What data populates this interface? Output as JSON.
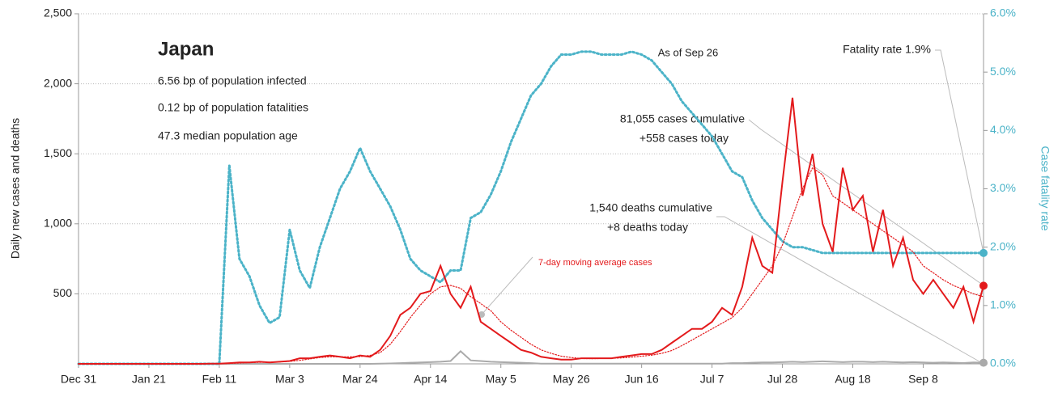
{
  "chart_data": {
    "type": "line",
    "title": "Japan",
    "annotations": [
      "6.56 bp of population infected",
      "0.12 bp of population fatalities",
      "47.3 median population age",
      "As of Sep 26",
      "Fatality rate 1.9%",
      "81,055 cases cumulative",
      "+558 cases today",
      "1,540 deaths cumulative",
      "+8 deaths today"
    ],
    "y_label": "Daily new cases and deaths",
    "y2_label": "Case fatality rate",
    "categories": [
      "Dec 31",
      null,
      null,
      null,
      null,
      null,
      null,
      "Jan 21",
      null,
      null,
      null,
      null,
      null,
      null,
      "Feb 11",
      null,
      null,
      null,
      null,
      null,
      null,
      "Mar 3",
      null,
      null,
      null,
      null,
      null,
      null,
      "Mar 24",
      null,
      null,
      null,
      null,
      null,
      null,
      "Apr 14",
      null,
      null,
      null,
      null,
      null,
      null,
      "May 5",
      null,
      null,
      null,
      null,
      null,
      null,
      "May 26",
      null,
      null,
      null,
      null,
      null,
      null,
      "Jun 16",
      null,
      null,
      null,
      null,
      null,
      null,
      "Jul 7",
      null,
      null,
      null,
      null,
      null,
      null,
      "Jul 28",
      null,
      null,
      null,
      null,
      null,
      null,
      "Aug 18",
      null,
      null,
      null,
      null,
      null,
      null,
      "Sep 8",
      null,
      null,
      null,
      null,
      null,
      null
    ],
    "series": [
      {
        "color": "#e31a1c",
        "style": "solid",
        "values": [
          0,
          0,
          0,
          0,
          0,
          0,
          0,
          0,
          0,
          0,
          0,
          0,
          0,
          1,
          1,
          5,
          10,
          10,
          15,
          10,
          15,
          20,
          40,
          40,
          50,
          60,
          50,
          40,
          60,
          50,
          100,
          200,
          350,
          400,
          500,
          520,
          700,
          500,
          400,
          550,
          300,
          250,
          200,
          150,
          100,
          80,
          50,
          40,
          30,
          30,
          40,
          40,
          40,
          40,
          50,
          60,
          70,
          70,
          100,
          150,
          200,
          250,
          250,
          300,
          400,
          350,
          550,
          900,
          700,
          650,
          1300,
          1900,
          1200,
          1500,
          1000,
          800,
          1400,
          1100,
          1200,
          800,
          1100,
          700,
          900,
          600,
          500,
          600,
          500,
          400,
          550,
          300,
          558
        ]
      },
      {
        "name": "7-day moving average cases",
        "color": "#e31a1c",
        "style": "dotted",
        "values": [
          0,
          0,
          0,
          0,
          0,
          0,
          0,
          0,
          0,
          0,
          0,
          0,
          0,
          0,
          1,
          3,
          6,
          9,
          11,
          12,
          14,
          18,
          25,
          35,
          45,
          50,
          50,
          50,
          52,
          60,
          80,
          140,
          230,
          330,
          420,
          500,
          550,
          560,
          540,
          480,
          430,
          380,
          300,
          240,
          190,
          140,
          100,
          75,
          55,
          45,
          38,
          37,
          38,
          40,
          42,
          48,
          55,
          62,
          75,
          95,
          130,
          170,
          210,
          250,
          290,
          330,
          400,
          500,
          600,
          700,
          850,
          1050,
          1250,
          1400,
          1350,
          1200,
          1150,
          1100,
          1050,
          1000,
          950,
          900,
          850,
          800,
          700,
          650,
          600,
          560,
          530,
          500,
          480
        ]
      },
      {
        "color": "#aaaaaa",
        "style": "solid",
        "values": [
          0,
          0,
          0,
          0,
          0,
          0,
          0,
          0,
          0,
          0,
          0,
          0,
          0,
          0,
          0,
          0,
          0,
          0,
          0,
          0,
          0,
          0,
          0,
          0,
          0,
          0,
          0,
          0,
          0,
          0,
          2,
          3,
          5,
          8,
          10,
          12,
          15,
          20,
          90,
          25,
          20,
          15,
          12,
          10,
          8,
          5,
          2,
          2,
          2,
          2,
          2,
          2,
          2,
          2,
          2,
          2,
          2,
          2,
          2,
          2,
          2,
          2,
          2,
          2,
          2,
          5,
          5,
          8,
          10,
          10,
          12,
          15,
          12,
          15,
          18,
          15,
          12,
          15,
          15,
          12,
          15,
          12,
          10,
          12,
          10,
          8,
          10,
          8,
          6,
          10,
          8
        ]
      },
      {
        "color": "#4bb3c8",
        "style": "dotted",
        "axis": "y2",
        "values": [
          0,
          0,
          0,
          0,
          0,
          0,
          0,
          0,
          0,
          0,
          0,
          0,
          0,
          0,
          0,
          3.4,
          1.8,
          1.5,
          1.0,
          0.7,
          0.8,
          2.3,
          1.6,
          1.3,
          2.0,
          2.5,
          3.0,
          3.3,
          3.7,
          3.3,
          3.0,
          2.7,
          2.3,
          1.8,
          1.6,
          1.5,
          1.4,
          1.6,
          1.6,
          2.5,
          2.6,
          2.9,
          3.3,
          3.8,
          4.2,
          4.6,
          4.8,
          5.1,
          5.3,
          5.3,
          5.35,
          5.35,
          5.3,
          5.3,
          5.3,
          5.35,
          5.3,
          5.2,
          5.0,
          4.8,
          4.5,
          4.3,
          4.1,
          3.9,
          3.6,
          3.3,
          3.2,
          2.8,
          2.5,
          2.3,
          2.1,
          2.0,
          2.0,
          1.95,
          1.9,
          1.9,
          1.9,
          1.9,
          1.9,
          1.9,
          1.9,
          1.9,
          1.9,
          1.9,
          1.9,
          1.9,
          1.9,
          1.9,
          1.9,
          1.9,
          1.9
        ]
      }
    ],
    "ylim": [
      0,
      2500
    ],
    "yticks": [
      500,
      {
        "value": 1000,
        "label": "1,000"
      },
      {
        "value": 1500,
        "label": "1,500"
      },
      {
        "value": 2000,
        "label": "2,000"
      },
      {
        "value": 2500,
        "label": "2,500"
      }
    ],
    "y2lim": [
      0,
      6
    ],
    "y2ticks": [
      {
        "value": 0,
        "label": "0.0%"
      },
      {
        "value": 1,
        "label": "1.0%"
      },
      {
        "value": 2,
        "label": "2.0%"
      },
      {
        "value": 3,
        "label": "3.0%"
      },
      {
        "value": 4,
        "label": "4.0%"
      },
      {
        "value": 5,
        "label": "5.0%"
      },
      {
        "value": 6,
        "label": "6.0%"
      }
    ],
    "grid": true
  }
}
